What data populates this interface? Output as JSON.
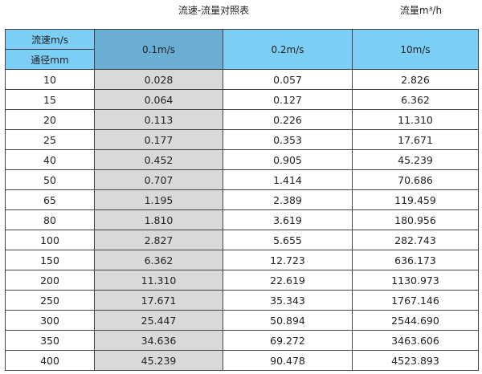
{
  "title": "流速-流量对照表",
  "unit": "流量m³/h",
  "header": {
    "velocity_label": "流速m/s",
    "diameter_label": "通径mm",
    "columns": [
      "0.1m/s",
      "0.2m/s",
      "10m/s"
    ]
  },
  "colors": {
    "header": "#7dcef5",
    "header_selected": "#6aafd3",
    "highlight_column": "#d9d9d9"
  },
  "rows": [
    [
      "10",
      "0.028",
      "0.057",
      "2.826"
    ],
    [
      "15",
      "0.064",
      "0.127",
      "6.362"
    ],
    [
      "20",
      "0.113",
      "0.226",
      "11.310"
    ],
    [
      "25",
      "0.177",
      "0.353",
      "17.671"
    ],
    [
      "40",
      "0.452",
      "0.905",
      "45.239"
    ],
    [
      "50",
      "0.707",
      "1.414",
      "70.686"
    ],
    [
      "65",
      "1.195",
      "2.389",
      "119.459"
    ],
    [
      "80",
      "1.810",
      "3.619",
      "180.956"
    ],
    [
      "100",
      "2.827",
      "5.655",
      "282.743"
    ],
    [
      "150",
      "6.362",
      "12.723",
      "636.173"
    ],
    [
      "200",
      "11.310",
      "22.619",
      "1130.973"
    ],
    [
      "250",
      "17.671",
      "35.343",
      "1767.146"
    ],
    [
      "300",
      "25.447",
      "50.894",
      "2544.690"
    ],
    [
      "350",
      "34.636",
      "69.272",
      "3463.606"
    ],
    [
      "400",
      "45.239",
      "90.478",
      "4523.893"
    ]
  ]
}
